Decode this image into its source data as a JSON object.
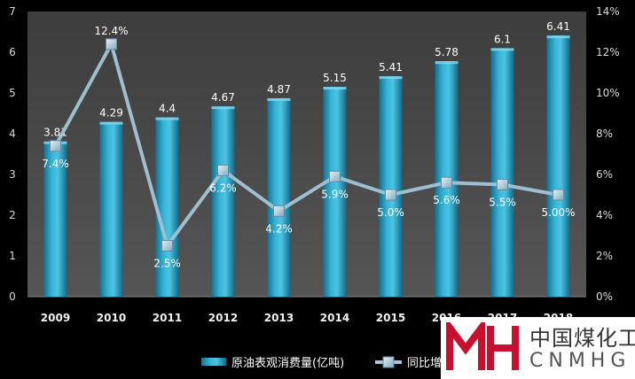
{
  "chart_data": {
    "type": "bar",
    "categories": [
      "2009",
      "2010",
      "2011",
      "2012",
      "2013",
      "2014",
      "2015",
      "2016",
      "2017",
      "2018"
    ],
    "series": [
      {
        "name": "原油表观消费量(亿吨)",
        "type": "bar",
        "axis": "left",
        "values": [
          3.81,
          4.29,
          4.4,
          4.67,
          4.87,
          5.15,
          5.41,
          5.78,
          6.1,
          6.41
        ],
        "labels": [
          "3.81",
          "4.29",
          "4.4",
          "4.67",
          "4.87",
          "5.15",
          "5.41",
          "5.78",
          "6.1",
          "6.41"
        ],
        "color": "#2a9fc4"
      },
      {
        "name": "同比增长",
        "type": "line",
        "axis": "right",
        "values": [
          7.4,
          12.4,
          2.5,
          6.2,
          4.2,
          5.9,
          5.0,
          5.6,
          5.5,
          5.0
        ],
        "labels": [
          "7.4%",
          "12.4%",
          "2.5%",
          "6.2%",
          "4.2%",
          "5.9%",
          "5.0%",
          "5.6%",
          "5.5%",
          "5.00%"
        ],
        "color": "#a9c9d9"
      }
    ],
    "ylim": [
      0,
      7
    ],
    "yticks": [
      "0",
      "1",
      "2",
      "3",
      "4",
      "5",
      "6",
      "7"
    ],
    "y2lim": [
      0,
      14
    ],
    "y2ticks": [
      "0%",
      "2%",
      "4%",
      "6%",
      "8%",
      "10%",
      "12%",
      "14%"
    ],
    "grid": false,
    "legend_position": "bottom"
  },
  "watermark": {
    "text_cn": "中国煤化工",
    "text_en": "CNMHG"
  },
  "colors": {
    "background": "#000000",
    "plot_background": "#4a4a4a",
    "bar": "#2a9fc4",
    "line": "#a9c9d9"
  }
}
